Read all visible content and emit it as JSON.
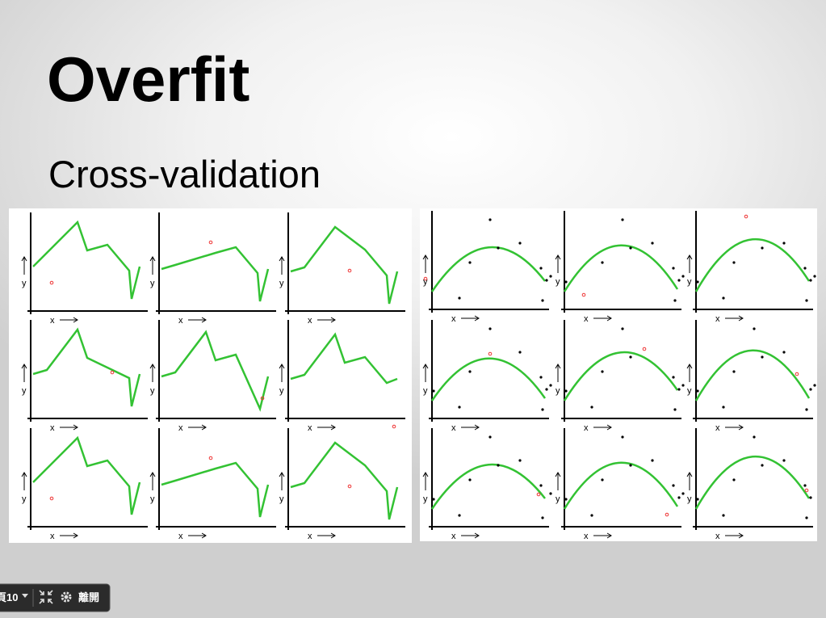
{
  "slide": {
    "title": "Overfit",
    "subtitle": "Cross-validation"
  },
  "figure": {
    "x_label": "x",
    "y_label": "y"
  },
  "toolbar": {
    "page_prefix": "頁",
    "page": "10",
    "exit": "離開"
  }
}
